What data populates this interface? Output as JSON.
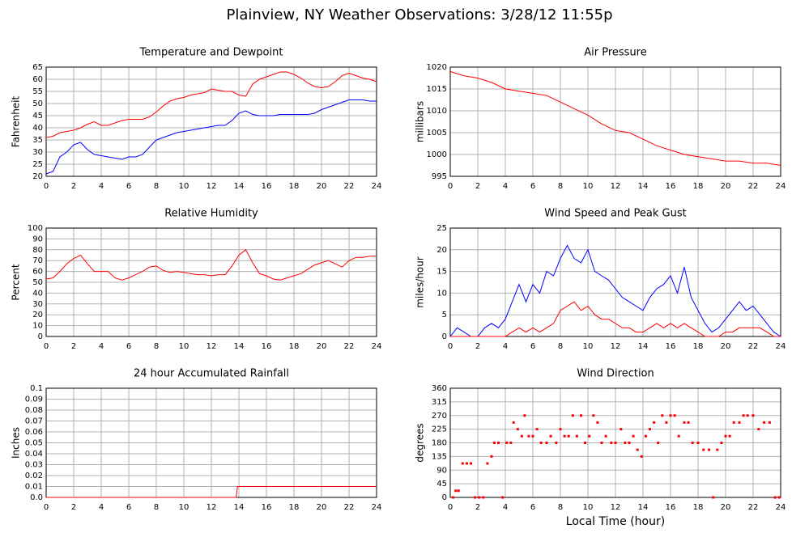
{
  "title": "Plainview, NY Weather Observations: 3/28/12 11:55p",
  "chart_data": [
    {
      "type": "line",
      "title": "Temperature and Dewpoint",
      "ylabel": "Fahrenheit",
      "xlim": [
        0,
        24
      ],
      "xticks": [
        0,
        2,
        4,
        6,
        8,
        10,
        12,
        14,
        16,
        18,
        20,
        22,
        24
      ],
      "ylim": [
        20,
        65
      ],
      "yticks": [
        20,
        25,
        30,
        35,
        40,
        45,
        50,
        55,
        60,
        65
      ],
      "grid": true,
      "x": [
        0,
        0.5,
        1,
        1.5,
        2,
        2.5,
        3,
        3.5,
        4,
        4.5,
        5,
        5.5,
        6,
        6.5,
        7,
        7.5,
        8,
        8.5,
        9,
        9.5,
        10,
        10.5,
        11,
        11.5,
        12,
        12.5,
        13,
        13.5,
        14,
        14.5,
        15,
        15.5,
        16,
        16.5,
        17,
        17.5,
        18,
        18.5,
        19,
        19.5,
        20,
        20.5,
        21,
        21.5,
        22,
        22.5,
        23,
        23.5,
        24
      ],
      "series": [
        {
          "color": "#ff0000",
          "values": [
            36,
            36.5,
            38,
            38.5,
            39,
            40,
            41.5,
            42.5,
            41,
            41,
            42,
            43,
            43.5,
            43.5,
            43.5,
            44.5,
            46.5,
            49,
            51,
            52,
            52.5,
            53.5,
            54,
            54.5,
            56,
            55.5,
            55,
            55,
            53.5,
            53,
            58,
            60,
            61,
            62,
            63,
            63,
            62,
            60.5,
            58.5,
            57,
            56.5,
            57,
            59,
            61.5,
            62.5,
            61.5,
            60.5,
            60,
            59
          ]
        },
        {
          "color": "#0000ff",
          "values": [
            21,
            22,
            28,
            30,
            33,
            34,
            31,
            29,
            28.5,
            28,
            27.5,
            27,
            28,
            28,
            29,
            32,
            35,
            36,
            37,
            38,
            38.5,
            39,
            39.5,
            40,
            40.5,
            41,
            41,
            43,
            46,
            47,
            45.5,
            45,
            45,
            45,
            45.5,
            45.5,
            45.5,
            45.5,
            45.5,
            46,
            47.5,
            48.5,
            49.5,
            50.5,
            51.5,
            51.5,
            51.5,
            51,
            51
          ]
        }
      ]
    },
    {
      "type": "line",
      "title": "Air Pressure",
      "ylabel": "millibars",
      "xlim": [
        0,
        24
      ],
      "xticks": [
        0,
        2,
        4,
        6,
        8,
        10,
        12,
        14,
        16,
        18,
        20,
        22,
        24
      ],
      "ylim": [
        995,
        1020
      ],
      "yticks": [
        995,
        1000,
        1005,
        1010,
        1015,
        1020
      ],
      "grid": true,
      "x": [
        0,
        0.5,
        1,
        2,
        3,
        4,
        5,
        6,
        7,
        8,
        9,
        10,
        11,
        12,
        13,
        14,
        15,
        16,
        17,
        18,
        19,
        20,
        21,
        22,
        23,
        24
      ],
      "series": [
        {
          "color": "#ff0000",
          "values": [
            1019,
            1018.5,
            1018,
            1017.5,
            1016.5,
            1015,
            1014.5,
            1014,
            1013.5,
            1012,
            1010.5,
            1009,
            1007,
            1005.5,
            1005,
            1003.5,
            1002,
            1001,
            1000,
            999.5,
            999,
            998.5,
            998.5,
            998,
            998,
            997.5
          ]
        }
      ]
    },
    {
      "type": "line",
      "title": "Relative Humidity",
      "ylabel": "Percent",
      "xlim": [
        0,
        24
      ],
      "xticks": [
        0,
        2,
        4,
        6,
        8,
        10,
        12,
        14,
        16,
        18,
        20,
        22,
        24
      ],
      "ylim": [
        0,
        100
      ],
      "yticks": [
        0,
        10,
        20,
        30,
        40,
        50,
        60,
        70,
        80,
        90,
        100
      ],
      "grid": true,
      "x": [
        0,
        0.5,
        1,
        1.5,
        2,
        2.5,
        3,
        3.5,
        4,
        4.5,
        5,
        5.5,
        6,
        6.5,
        7,
        7.5,
        8,
        8.5,
        9,
        9.5,
        10,
        10.5,
        11,
        11.5,
        12,
        12.5,
        13,
        13.5,
        14,
        14.5,
        15,
        15.5,
        16,
        16.5,
        17,
        17.5,
        18,
        18.5,
        19,
        19.5,
        20,
        20.5,
        21,
        21.5,
        22,
        22.5,
        23,
        23.5,
        24
      ],
      "series": [
        {
          "color": "#ff0000",
          "values": [
            53,
            54,
            60,
            67,
            72,
            75,
            67,
            60,
            60,
            60,
            54,
            52,
            54,
            57,
            60,
            64,
            65,
            61,
            59,
            60,
            59,
            58,
            57,
            57,
            56,
            57,
            57,
            65,
            75,
            80,
            68,
            58,
            56,
            53,
            52,
            54,
            56,
            58,
            62,
            66,
            68,
            70,
            67,
            64,
            70,
            73,
            73,
            74,
            74
          ]
        }
      ]
    },
    {
      "type": "line",
      "title": "Wind Speed and Peak Gust",
      "ylabel": "miles/hour",
      "xlim": [
        0,
        24
      ],
      "xticks": [
        0,
        2,
        4,
        6,
        8,
        10,
        12,
        14,
        16,
        18,
        20,
        22,
        24
      ],
      "ylim": [
        0,
        25
      ],
      "yticks": [
        0,
        5,
        10,
        15,
        20,
        25
      ],
      "grid": true,
      "x": [
        0,
        0.5,
        1,
        1.5,
        2,
        2.5,
        3,
        3.5,
        4,
        4.5,
        5,
        5.5,
        6,
        6.5,
        7,
        7.5,
        8,
        8.5,
        9,
        9.5,
        10,
        10.5,
        11,
        11.5,
        12,
        12.5,
        13,
        13.5,
        14,
        14.5,
        15,
        15.5,
        16,
        16.5,
        17,
        17.5,
        18,
        18.5,
        19,
        19.5,
        20,
        20.5,
        21,
        21.5,
        22,
        22.5,
        23,
        23.5,
        24
      ],
      "series": [
        {
          "color": "#0000ff",
          "values": [
            0,
            2,
            1,
            0,
            0,
            2,
            3,
            2,
            4,
            8,
            12,
            8,
            12,
            10,
            15,
            14,
            18,
            21,
            18,
            17,
            20,
            15,
            14,
            13,
            11,
            9,
            8,
            7,
            6,
            9,
            11,
            12,
            14,
            10,
            16,
            9,
            6,
            3,
            1,
            2,
            4,
            6,
            8,
            6,
            7,
            5,
            3,
            1,
            0
          ]
        },
        {
          "color": "#ff0000",
          "values": [
            0,
            0,
            0,
            0,
            0,
            0,
            0,
            0,
            0,
            1,
            2,
            1,
            2,
            1,
            2,
            3,
            6,
            7,
            8,
            6,
            7,
            5,
            4,
            4,
            3,
            2,
            2,
            1,
            1,
            2,
            3,
            2,
            3,
            2,
            3,
            2,
            1,
            0,
            0,
            0,
            1,
            1,
            2,
            2,
            2,
            2,
            1,
            0,
            0
          ]
        }
      ]
    },
    {
      "type": "line",
      "title": "24 hour Accumulated Rainfall",
      "ylabel": "Inches",
      "xlim": [
        0,
        24
      ],
      "xticks": [
        0,
        2,
        4,
        6,
        8,
        10,
        12,
        14,
        16,
        18,
        20,
        22,
        24
      ],
      "ylim": [
        0,
        0.1
      ],
      "yticks": [
        {
          "value": 0,
          "label": "0.0"
        },
        0.01,
        0.02,
        0.03,
        0.04,
        0.05,
        0.06,
        0.07,
        0.08,
        0.09,
        0.1
      ],
      "grid": true,
      "x": [
        0,
        13.8,
        13.9,
        24
      ],
      "series": [
        {
          "color": "#ff0000",
          "values": [
            0,
            0,
            0.01,
            0.01
          ]
        }
      ]
    },
    {
      "type": "scatter",
      "title": "Wind Direction",
      "ylabel": "degrees",
      "xlabel": "Local Time (hour)",
      "xlim": [
        0,
        24
      ],
      "xticks": [
        0,
        2,
        4,
        6,
        8,
        10,
        12,
        14,
        16,
        18,
        20,
        22,
        24
      ],
      "ylim": [
        0,
        360
      ],
      "yticks": [
        0,
        45,
        90,
        135,
        180,
        225,
        270,
        315,
        360
      ],
      "grid": true,
      "x": [
        0.2,
        0.4,
        0.6,
        0.9,
        1.2,
        1.5,
        1.8,
        2.1,
        2.4,
        2.7,
        3,
        3.2,
        3.5,
        3.8,
        4.1,
        4.4,
        4.6,
        4.9,
        5.2,
        5.4,
        5.7,
        6,
        6.3,
        6.6,
        7,
        7.3,
        7.7,
        8,
        8.3,
        8.6,
        8.9,
        9.2,
        9.5,
        9.8,
        10.1,
        10.4,
        10.7,
        11,
        11.3,
        11.7,
        12,
        12.4,
        12.7,
        13,
        13.3,
        13.6,
        13.9,
        14.2,
        14.5,
        14.8,
        15.1,
        15.4,
        15.7,
        16,
        16.3,
        16.6,
        17,
        17.3,
        17.6,
        18,
        18.4,
        18.8,
        19.1,
        19.4,
        19.7,
        20,
        20.3,
        20.6,
        21,
        21.3,
        21.6,
        22,
        22.4,
        22.8,
        23.2,
        23.6,
        23.9
      ],
      "series": [
        {
          "color": "#ff0000",
          "values": [
            0,
            22,
            22,
            112,
            112,
            112,
            0,
            0,
            0,
            112,
            135,
            180,
            180,
            0,
            180,
            180,
            247,
            225,
            202,
            270,
            202,
            202,
            225,
            180,
            180,
            202,
            180,
            225,
            202,
            202,
            270,
            202,
            270,
            180,
            202,
            270,
            247,
            180,
            202,
            180,
            180,
            225,
            180,
            180,
            202,
            157,
            135,
            202,
            225,
            247,
            180,
            270,
            247,
            270,
            270,
            202,
            247,
            247,
            180,
            180,
            157,
            157,
            0,
            157,
            180,
            202,
            202,
            247,
            247,
            270,
            270,
            270,
            225,
            247,
            247,
            0,
            0
          ]
        }
      ]
    }
  ]
}
